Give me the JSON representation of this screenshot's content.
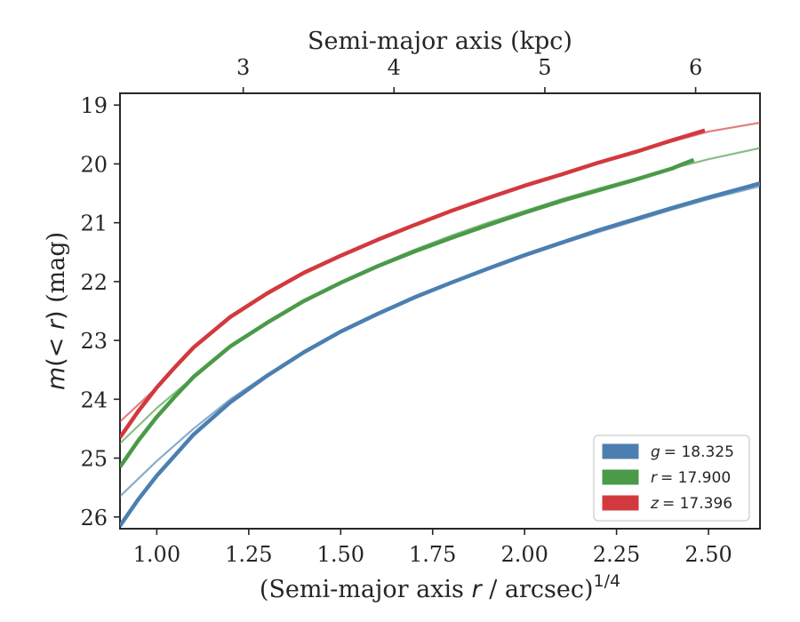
{
  "chart_data": {
    "type": "line",
    "xlabel": "(Semi-major axis r / arcsec)^{1/4}",
    "ylabel": "m(<r) (mag)",
    "top_xlabel": "Semi-major axis (kpc)",
    "xlim": [
      0.9,
      2.64
    ],
    "ylim": [
      26.2,
      18.8
    ],
    "y_inverted": true,
    "x_ticks": [
      1.0,
      1.25,
      1.5,
      1.75,
      2.0,
      2.25,
      2.5
    ],
    "x_tick_labels": [
      "1.00",
      "1.25",
      "1.50",
      "1.75",
      "2.00",
      "2.25",
      "2.50"
    ],
    "y_ticks": [
      19,
      20,
      21,
      22,
      23,
      24,
      25,
      26
    ],
    "y_tick_labels": [
      "19",
      "20",
      "21",
      "22",
      "23",
      "24",
      "25",
      "26"
    ],
    "top_ticks_x": [
      1.235,
      1.645,
      2.055,
      2.465
    ],
    "top_tick_labels": [
      "3",
      "4",
      "5",
      "6"
    ],
    "grid": false,
    "legend_position": "lower-right",
    "series": [
      {
        "name": "g = 18.325",
        "legend_prefix": "g",
        "legend_value": "= 18.325",
        "color": "#4c7fb0",
        "data_x": [
          0.9,
          0.95,
          1.0,
          1.05,
          1.1,
          1.2,
          1.3,
          1.4,
          1.5,
          1.6,
          1.7,
          1.8,
          1.9,
          2.0,
          2.1,
          2.2,
          2.3,
          2.4,
          2.5,
          2.6,
          2.64
        ],
        "data_y": [
          26.15,
          25.7,
          25.3,
          24.95,
          24.6,
          24.05,
          23.6,
          23.2,
          22.85,
          22.55,
          22.27,
          22.02,
          21.78,
          21.55,
          21.34,
          21.13,
          20.94,
          20.75,
          20.57,
          20.4,
          20.33
        ],
        "model_x": [
          0.9,
          1.0,
          1.1,
          1.2,
          1.3,
          1.4,
          1.5,
          1.6,
          1.7,
          1.8,
          1.9,
          2.0,
          2.1,
          2.2,
          2.3,
          2.4,
          2.5,
          2.64
        ],
        "model_y": [
          25.65,
          25.05,
          24.5,
          24.0,
          23.58,
          23.2,
          22.86,
          22.56,
          22.28,
          22.03,
          21.8,
          21.57,
          21.36,
          21.16,
          20.97,
          20.78,
          20.6,
          20.38
        ]
      },
      {
        "name": "r = 17.900",
        "legend_prefix": "r",
        "legend_value": "= 17.900",
        "color": "#4a9a48",
        "data_x": [
          0.9,
          0.95,
          1.0,
          1.05,
          1.1,
          1.2,
          1.3,
          1.4,
          1.5,
          1.6,
          1.7,
          1.8,
          1.9,
          2.0,
          2.1,
          2.2,
          2.3,
          2.4,
          2.46
        ],
        "data_y": [
          25.15,
          24.7,
          24.3,
          23.95,
          23.62,
          23.1,
          22.7,
          22.33,
          22.02,
          21.74,
          21.49,
          21.26,
          21.04,
          20.83,
          20.63,
          20.45,
          20.27,
          20.08,
          19.93
        ],
        "model_x": [
          0.9,
          1.0,
          1.1,
          1.2,
          1.3,
          1.4,
          1.5,
          1.6,
          1.7,
          1.8,
          1.9,
          2.0,
          2.1,
          2.2,
          2.3,
          2.4,
          2.5,
          2.64
        ],
        "model_y": [
          24.75,
          24.15,
          23.62,
          23.12,
          22.7,
          22.33,
          22.01,
          21.72,
          21.46,
          21.22,
          21.0,
          20.8,
          20.6,
          20.42,
          20.25,
          20.08,
          19.92,
          19.73
        ]
      },
      {
        "name": "z = 17.396",
        "legend_prefix": "z",
        "legend_value": "= 17.396",
        "color": "#d2393f",
        "data_x": [
          0.9,
          0.95,
          1.0,
          1.05,
          1.1,
          1.2,
          1.3,
          1.4,
          1.5,
          1.6,
          1.7,
          1.8,
          1.9,
          2.0,
          2.1,
          2.2,
          2.3,
          2.4,
          2.49
        ],
        "data_y": [
          24.65,
          24.2,
          23.8,
          23.45,
          23.12,
          22.6,
          22.2,
          21.85,
          21.56,
          21.29,
          21.04,
          20.8,
          20.58,
          20.37,
          20.18,
          19.98,
          19.8,
          19.6,
          19.43
        ],
        "model_x": [
          0.9,
          1.0,
          1.1,
          1.2,
          1.3,
          1.4,
          1.5,
          1.6,
          1.7,
          1.8,
          1.9,
          2.0,
          2.1,
          2.2,
          2.3,
          2.4,
          2.5,
          2.64
        ],
        "model_y": [
          24.38,
          23.8,
          23.1,
          22.62,
          22.22,
          21.86,
          21.56,
          21.28,
          21.03,
          20.8,
          20.58,
          20.37,
          20.17,
          19.98,
          19.8,
          19.62,
          19.45,
          19.3
        ]
      }
    ]
  }
}
